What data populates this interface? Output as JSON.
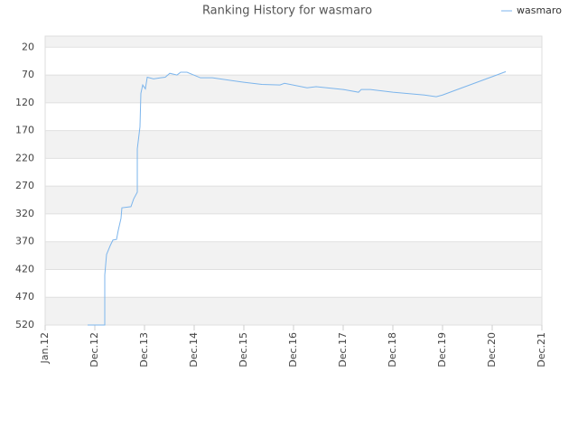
{
  "chart_data": {
    "type": "line",
    "title": "Ranking History for wasmaro",
    "legend": "top-right",
    "xlim": [
      0,
      10
    ],
    "xticks": [
      {
        "value": 0,
        "label": "Jan.12"
      },
      {
        "value": 1,
        "label": "Dec.12"
      },
      {
        "value": 2,
        "label": "Dec.13"
      },
      {
        "value": 3,
        "label": "Dec.14"
      },
      {
        "value": 4,
        "label": "Dec.15"
      },
      {
        "value": 5,
        "label": "Dec.16"
      },
      {
        "value": 6,
        "label": "Dec.17"
      },
      {
        "value": 7,
        "label": "Dec.18"
      },
      {
        "value": 8,
        "label": "Dec.19"
      },
      {
        "value": 9,
        "label": "Dec.20"
      },
      {
        "value": 10,
        "label": "Dec.21"
      }
    ],
    "ylim": [
      520,
      0
    ],
    "yticks": [
      20,
      70,
      120,
      170,
      220,
      270,
      320,
      370,
      420,
      470,
      520
    ],
    "grid": true,
    "x": [
      0.855,
      1.2,
      1.2,
      1.236,
      1.31,
      1.364,
      1.436,
      1.473,
      1.527,
      1.545,
      1.727,
      1.782,
      1.855,
      1.855,
      1.909,
      1.927,
      1.964,
      2.018,
      2.055,
      2.182,
      2.327,
      2.418,
      2.509,
      2.655,
      2.727,
      2.855,
      3.127,
      3.364,
      4.0,
      4.364,
      4.727,
      4.818,
      5.273,
      5.455,
      6.0,
      6.309,
      6.364,
      6.545,
      7.0,
      7.636,
      7.873,
      8.0,
      9.273
    ],
    "series": [
      {
        "name": "wasmaro",
        "color": "#7cb5ec",
        "values": [
          520,
          520,
          430,
          393,
          377,
          367,
          366,
          349,
          328,
          309,
          307,
          293,
          281,
          203,
          163,
          103,
          88,
          95,
          74,
          77,
          75,
          74,
          67,
          70,
          65,
          65,
          75,
          75,
          83,
          87,
          88,
          85,
          93,
          91,
          96,
          101,
          96,
          96,
          101,
          106,
          109,
          106,
          64
        ]
      }
    ]
  }
}
